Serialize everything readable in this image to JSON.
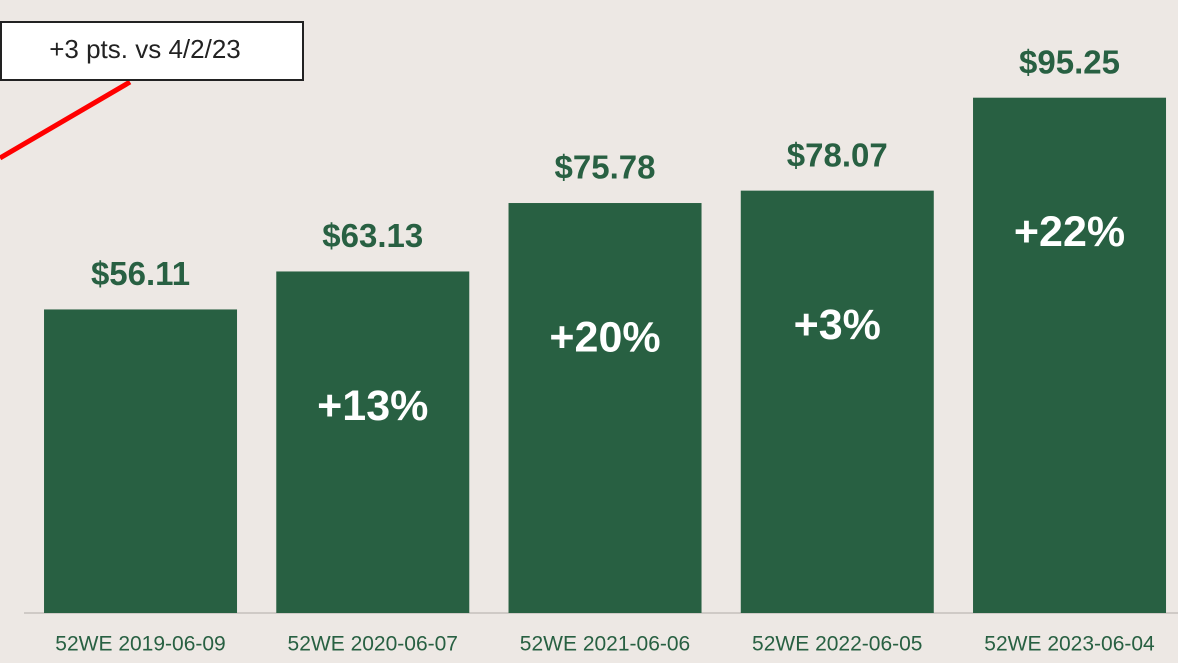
{
  "chart_data": {
    "type": "bar",
    "categories": [
      "52WE 2019-06-09",
      "52WE 2020-06-07",
      "52WE 2021-06-06",
      "52WE 2022-06-05",
      "52WE 2023-06-04"
    ],
    "values": [
      56.11,
      63.13,
      75.78,
      78.07,
      95.25
    ],
    "value_labels": [
      "$56.11",
      "$63.13",
      "$75.78",
      "$78.07",
      "$95.25"
    ],
    "bar_annotations": [
      null,
      "+13%",
      "+20%",
      "+3%",
      "+22%"
    ],
    "annotation": "+3 pts. vs 4/2/23",
    "color": "#286042",
    "ylim": [
      0,
      100
    ]
  }
}
